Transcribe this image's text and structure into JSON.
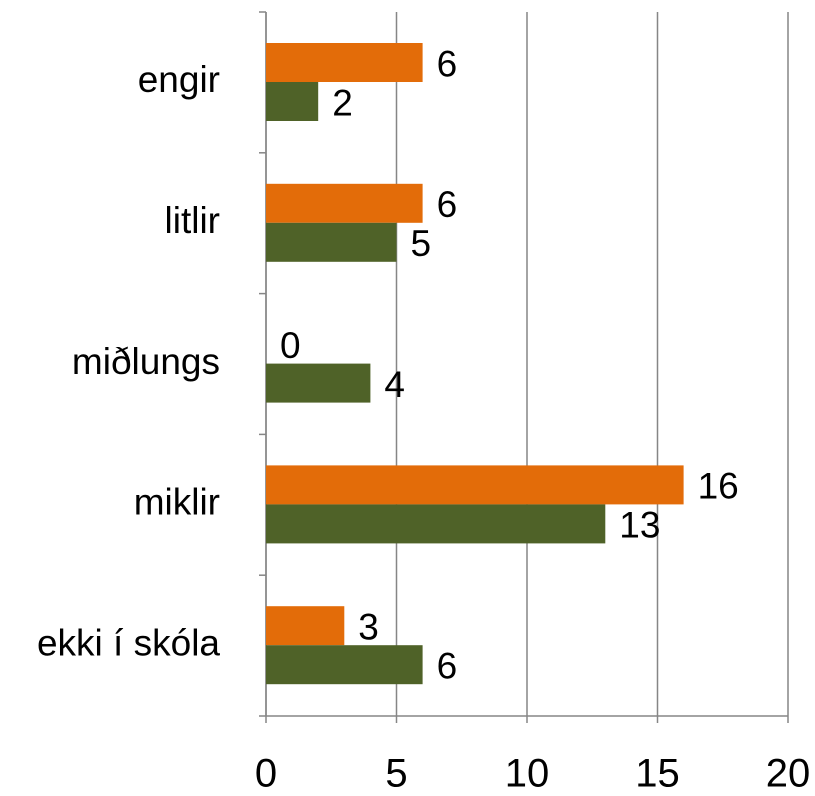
{
  "chart_data": {
    "type": "bar",
    "orientation": "horizontal",
    "categories": [
      "engir",
      "litlir",
      "miðlungs",
      "miklir",
      "ekki í skóla"
    ],
    "series": [
      {
        "color": "#e36c09",
        "values": [
          6,
          6,
          0,
          16,
          3
        ]
      },
      {
        "color": "#4f6228",
        "values": [
          2,
          5,
          4,
          13,
          6
        ]
      }
    ],
    "xlim": [
      0,
      20
    ],
    "xticks": [
      0,
      5,
      10,
      15,
      20
    ],
    "grid": true
  }
}
